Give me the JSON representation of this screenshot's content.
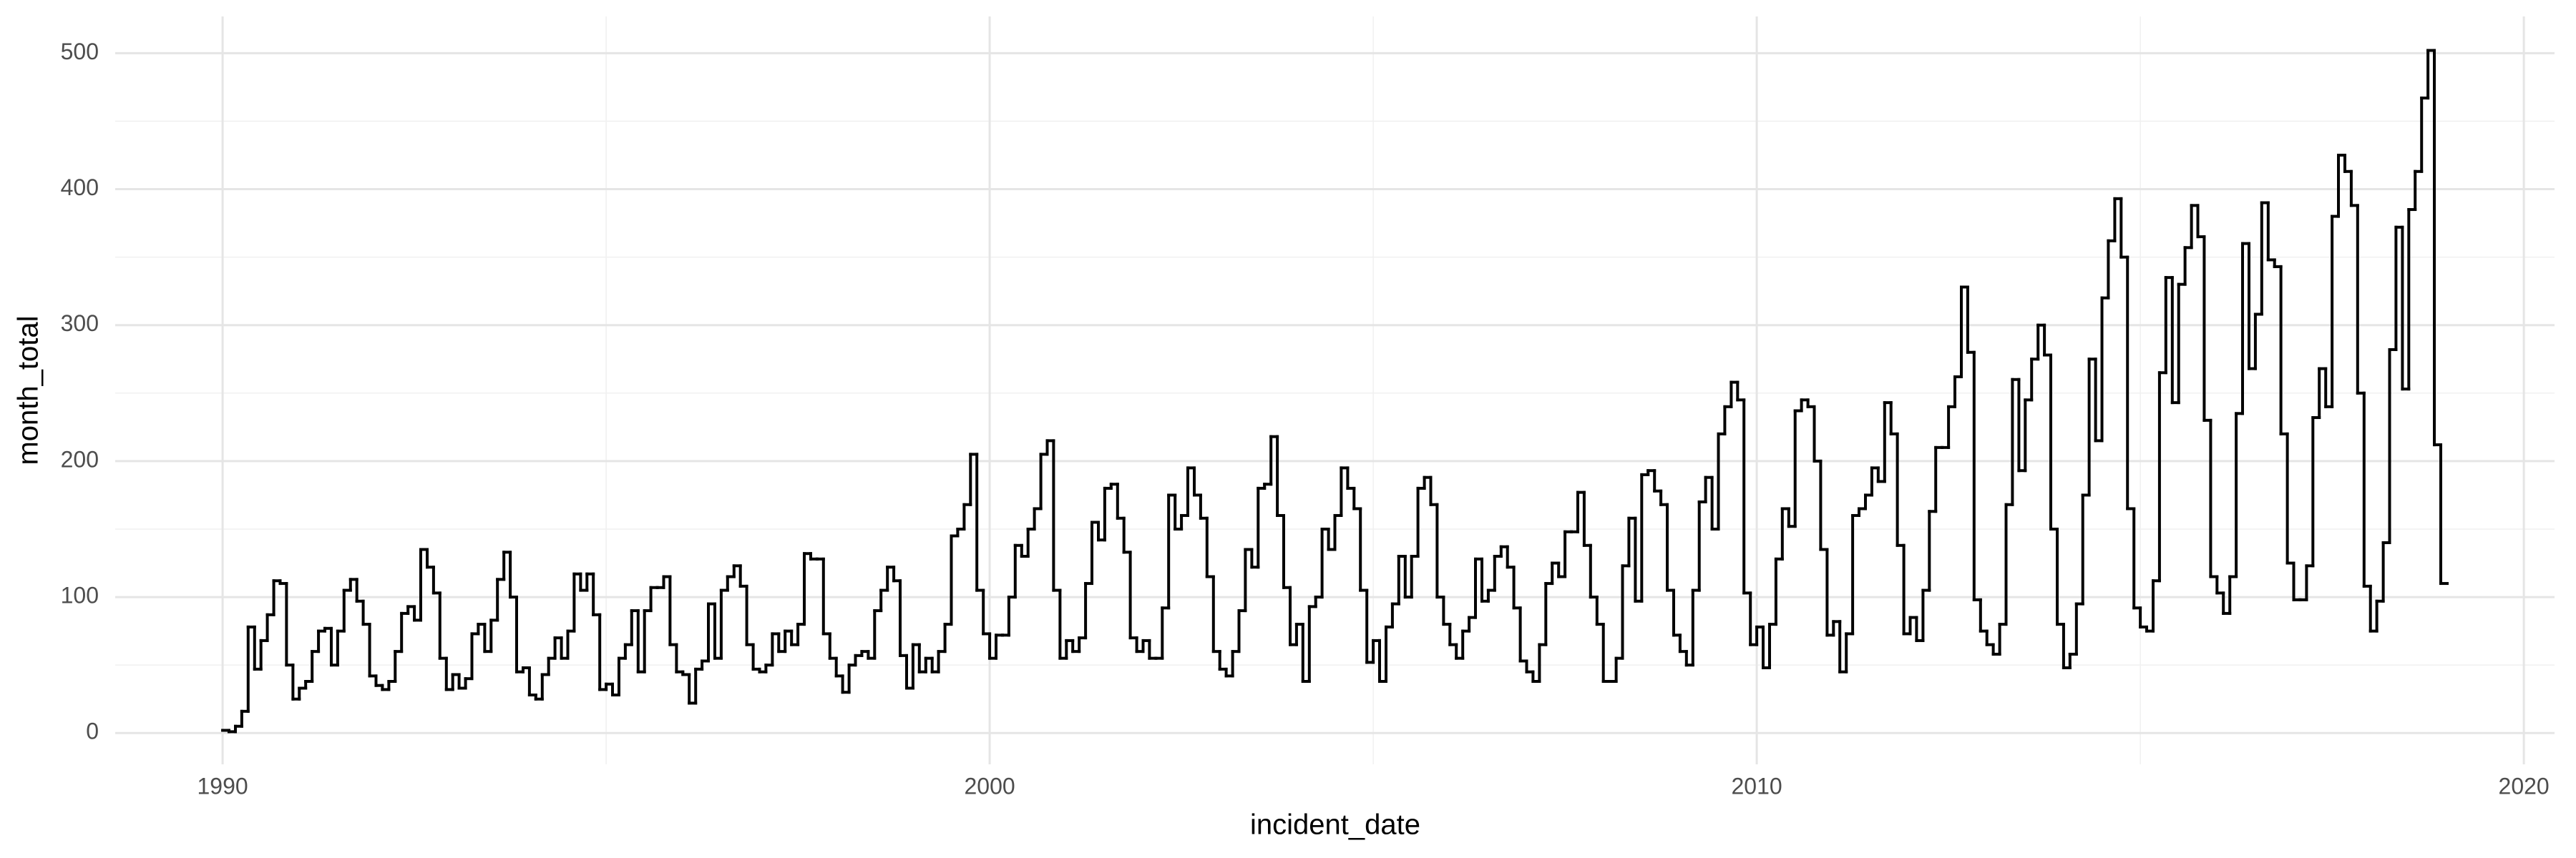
{
  "chart_data": {
    "type": "step",
    "xlabel": "incident_date",
    "ylabel": "month_total",
    "xlim": [
      1988.6,
      2020.4
    ],
    "xticks": [
      1990,
      2000,
      2010,
      2020
    ],
    "xminorticks": [
      1995,
      2005,
      2015
    ],
    "ylim": [
      -23,
      527
    ],
    "yticks": [
      0,
      100,
      200,
      300,
      400,
      500
    ],
    "yminorticks": [
      50,
      150,
      250,
      350,
      450
    ],
    "grid": true,
    "color": "#000000",
    "x": [
      1990,
      1990.083,
      1990.167,
      1990.25,
      1990.333,
      1990.417,
      1990.5,
      1990.583,
      1990.667,
      1990.75,
      1990.833,
      1990.917,
      1991,
      1991.083,
      1991.167,
      1991.25,
      1991.333,
      1991.417,
      1991.5,
      1991.583,
      1991.667,
      1991.75,
      1991.833,
      1991.917,
      1992,
      1992.083,
      1992.167,
      1992.25,
      1992.333,
      1992.417,
      1992.5,
      1992.583,
      1992.667,
      1992.75,
      1992.833,
      1992.917,
      1993,
      1993.083,
      1993.167,
      1993.25,
      1993.333,
      1993.417,
      1993.5,
      1993.583,
      1993.667,
      1993.75,
      1993.833,
      1993.917,
      1994,
      1994.083,
      1994.167,
      1994.25,
      1994.333,
      1994.417,
      1994.5,
      1994.583,
      1994.667,
      1994.75,
      1994.833,
      1994.917,
      1995,
      1995.083,
      1995.167,
      1995.25,
      1995.333,
      1995.417,
      1995.5,
      1995.583,
      1995.667,
      1995.75,
      1995.833,
      1995.917,
      1996,
      1996.083,
      1996.167,
      1996.25,
      1996.333,
      1996.417,
      1996.5,
      1996.583,
      1996.667,
      1996.75,
      1996.833,
      1996.917,
      1997,
      1997.083,
      1997.167,
      1997.25,
      1997.333,
      1997.417,
      1997.5,
      1997.583,
      1997.667,
      1997.75,
      1997.833,
      1997.917,
      1998,
      1998.083,
      1998.167,
      1998.25,
      1998.333,
      1998.417,
      1998.5,
      1998.583,
      1998.667,
      1998.75,
      1998.833,
      1998.917,
      1999,
      1999.083,
      1999.167,
      1999.25,
      1999.333,
      1999.417,
      1999.5,
      1999.583,
      1999.667,
      1999.75,
      1999.833,
      1999.917,
      2000,
      2000.083,
      2000.167,
      2000.25,
      2000.333,
      2000.417,
      2000.5,
      2000.583,
      2000.667,
      2000.75,
      2000.833,
      2000.917,
      2001,
      2001.083,
      2001.167,
      2001.25,
      2001.333,
      2001.417,
      2001.5,
      2001.583,
      2001.667,
      2001.75,
      2001.833,
      2001.917,
      2002,
      2002.083,
      2002.167,
      2002.25,
      2002.333,
      2002.417,
      2002.5,
      2002.583,
      2002.667,
      2002.75,
      2002.833,
      2002.917,
      2003,
      2003.083,
      2003.167,
      2003.25,
      2003.333,
      2003.417,
      2003.5,
      2003.583,
      2003.667,
      2003.75,
      2003.833,
      2003.917,
      2004,
      2004.083,
      2004.167,
      2004.25,
      2004.333,
      2004.417,
      2004.5,
      2004.583,
      2004.667,
      2004.75,
      2004.833,
      2004.917,
      2005,
      2005.083,
      2005.167,
      2005.25,
      2005.333,
      2005.417,
      2005.5,
      2005.583,
      2005.667,
      2005.75,
      2005.833,
      2005.917,
      2006,
      2006.083,
      2006.167,
      2006.25,
      2006.333,
      2006.417,
      2006.5,
      2006.583,
      2006.667,
      2006.75,
      2006.833,
      2006.917,
      2007,
      2007.083,
      2007.167,
      2007.25,
      2007.333,
      2007.417,
      2007.5,
      2007.583,
      2007.667,
      2007.75,
      2007.833,
      2007.917,
      2008,
      2008.083,
      2008.167,
      2008.25,
      2008.333,
      2008.417,
      2008.5,
      2008.583,
      2008.667,
      2008.75,
      2008.833,
      2008.917,
      2009,
      2009.083,
      2009.167,
      2009.25,
      2009.333,
      2009.417,
      2009.5,
      2009.583,
      2009.667,
      2009.75,
      2009.833,
      2009.917,
      2010,
      2010.083,
      2010.167,
      2010.25,
      2010.333,
      2010.417,
      2010.5,
      2010.583,
      2010.667,
      2010.75,
      2010.833,
      2010.917,
      2011,
      2011.083,
      2011.167,
      2011.25,
      2011.333,
      2011.417,
      2011.5,
      2011.583,
      2011.667,
      2011.75,
      2011.833,
      2011.917,
      2012,
      2012.083,
      2012.167,
      2012.25,
      2012.333,
      2012.417,
      2012.5,
      2012.583,
      2012.667,
      2012.75,
      2012.833,
      2012.917,
      2013,
      2013.083,
      2013.167,
      2013.25,
      2013.333,
      2013.417,
      2013.5,
      2013.583,
      2013.667,
      2013.75,
      2013.833,
      2013.917,
      2014,
      2014.083,
      2014.167,
      2014.25,
      2014.333,
      2014.417,
      2014.5,
      2014.583,
      2014.667,
      2014.75,
      2014.833,
      2014.917,
      2015,
      2015.083,
      2015.167,
      2015.25,
      2015.333,
      2015.417,
      2015.5,
      2015.583,
      2015.667,
      2015.75,
      2015.833,
      2015.917,
      2016,
      2016.083,
      2016.167,
      2016.25,
      2016.333,
      2016.417,
      2016.5,
      2016.583,
      2016.667,
      2016.75,
      2016.833,
      2016.917,
      2017,
      2017.083,
      2017.167,
      2017.25,
      2017.333,
      2017.417,
      2017.5,
      2017.583,
      2017.667,
      2017.75,
      2017.833,
      2017.917,
      2018,
      2018.083,
      2018.167,
      2018.25,
      2018.333,
      2018.417,
      2018.5,
      2018.583,
      2018.667,
      2018.75,
      2018.833,
      2018.917
    ],
    "values": [
      2,
      1,
      5,
      16,
      78,
      47,
      68,
      87,
      112,
      110,
      50,
      25,
      33,
      38,
      60,
      75,
      77,
      50,
      75,
      105,
      113,
      97,
      80,
      42,
      35,
      32,
      38,
      60,
      88,
      93,
      83,
      135,
      122,
      103,
      55,
      32,
      43,
      33,
      40,
      73,
      80,
      60,
      83,
      113,
      133,
      100,
      45,
      48,
      28,
      25,
      43,
      55,
      70,
      55,
      75,
      117,
      105,
      117,
      87,
      32,
      36,
      28,
      55,
      65,
      90,
      45,
      90,
      107,
      107,
      115,
      65,
      45,
      43,
      22,
      47,
      53,
      95,
      55,
      105,
      115,
      123,
      108,
      65,
      47,
      45,
      50,
      73,
      60,
      75,
      65,
      80,
      132,
      128,
      128,
      73,
      55,
      42,
      30,
      50,
      57,
      60,
      55,
      90,
      105,
      122,
      112,
      57,
      33,
      65,
      45,
      55,
      45,
      60,
      80,
      145,
      150,
      168,
      205,
      105,
      73,
      55,
      72,
      72,
      100,
      138,
      130,
      150,
      165,
      205,
      215,
      105,
      55,
      68,
      60,
      70,
      110,
      155,
      142,
      180,
      183,
      158,
      133,
      70,
      60,
      68,
      55,
      55,
      92,
      175,
      150,
      160,
      195,
      175,
      158,
      115,
      60,
      47,
      42,
      60,
      90,
      135,
      122,
      180,
      183,
      218,
      160,
      107,
      65,
      80,
      38,
      93,
      100,
      150,
      135,
      160,
      195,
      180,
      165,
      105,
      52,
      68,
      38,
      78,
      95,
      130,
      100,
      130,
      180,
      188,
      168,
      100,
      80,
      65,
      55,
      75,
      85,
      128,
      97,
      105,
      130,
      137,
      122,
      92,
      53,
      45,
      38,
      65,
      110,
      125,
      115,
      148,
      148,
      177,
      138,
      100,
      80,
      38,
      38,
      55,
      123,
      158,
      97,
      190,
      193,
      178,
      168,
      105,
      72,
      60,
      50,
      105,
      170,
      188,
      150,
      220,
      240,
      258,
      245,
      103,
      65,
      78,
      48,
      80,
      128,
      165,
      152,
      237,
      245,
      240,
      200,
      135,
      72,
      82,
      45,
      73,
      160,
      165,
      175,
      195,
      185,
      243,
      220,
      138,
      73,
      85,
      68,
      105,
      163,
      210,
      210,
      240,
      262,
      328,
      280,
      98,
      75,
      65,
      58,
      80,
      168,
      260,
      193,
      245,
      275,
      300,
      278,
      150,
      80,
      48,
      58,
      95,
      175,
      275,
      215,
      320,
      362,
      393,
      350,
      165,
      92,
      78,
      75,
      112,
      265,
      335,
      243,
      330,
      357,
      388,
      365,
      230,
      115,
      103,
      88,
      115,
      235,
      360,
      268,
      308,
      390,
      348,
      343,
      220,
      125,
      98,
      98,
      123,
      232,
      268,
      240,
      380,
      425,
      413,
      388,
      250,
      108,
      75,
      97,
      140,
      282,
      372,
      253,
      385,
      413,
      467,
      502,
      212,
      110
    ]
  }
}
